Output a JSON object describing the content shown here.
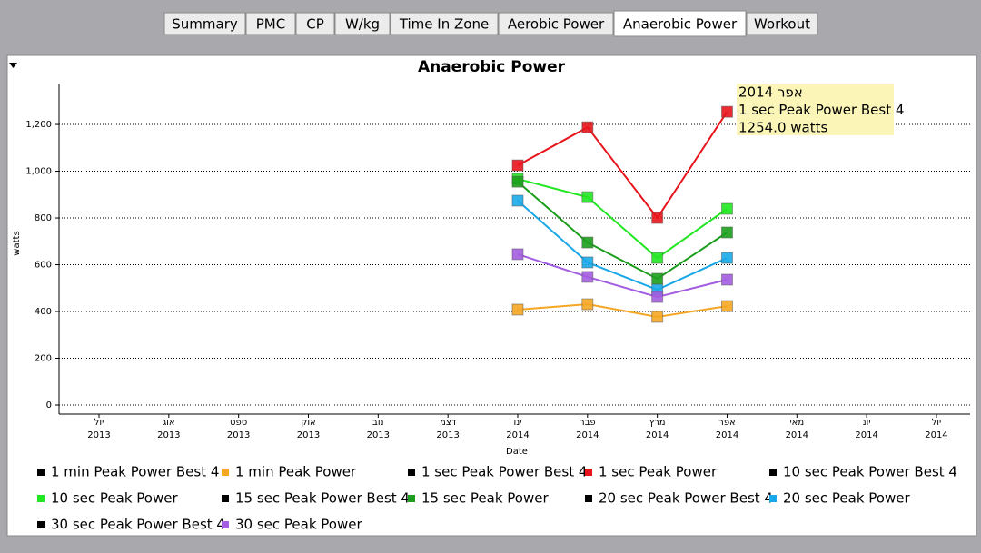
{
  "tabs": [
    "Summary",
    "PMC",
    "CP",
    "W/kg",
    "Time In Zone",
    "Aerobic Power",
    "Anaerobic Power",
    "Workout"
  ],
  "active_tab": 6,
  "chart_data": {
    "type": "line",
    "title": "Anaerobic Power",
    "y_label": "watts",
    "x_label": "Date",
    "categories": [
      "יול 2013",
      "אוג 2013",
      "ספט 2013",
      "אוק 2013",
      "נוב 2013",
      "דצמ 2013",
      "ינו 2014",
      "פבר 2014",
      "מרץ 2014",
      "אפר 2014",
      "מאי 2014",
      "יונ 2014",
      "יול 2014"
    ],
    "ylim": [
      0,
      1375
    ],
    "yticks": [
      0,
      200,
      400,
      600,
      800,
      {
        "value": 1000,
        "label": "1,000"
      },
      {
        "value": 1200,
        "label": "1,200"
      }
    ],
    "grid": true,
    "series": [
      {
        "name": "1 min Peak Power Best 4",
        "color": "#000000",
        "values": [
          null,
          null,
          null,
          null,
          null,
          null,
          null,
          null,
          null,
          null,
          null,
          null,
          null
        ]
      },
      {
        "name": "1 min Peak Power",
        "color": "#f5a623",
        "values": [
          null,
          null,
          null,
          null,
          null,
          null,
          408,
          431,
          377,
          423,
          null,
          null,
          null
        ]
      },
      {
        "name": "1 sec Peak Power Best 4",
        "color": "#000000",
        "values": [
          null,
          null,
          null,
          null,
          null,
          null,
          null,
          null,
          null,
          null,
          null,
          null,
          null
        ]
      },
      {
        "name": "1 sec Peak Power",
        "color": "#e8141c",
        "values": [
          null,
          null,
          null,
          null,
          null,
          null,
          1025,
          1188,
          800,
          1254,
          null,
          null,
          null
        ]
      },
      {
        "name": "10 sec Peak Power Best 4",
        "color": "#000000",
        "values": [
          null,
          null,
          null,
          null,
          null,
          null,
          null,
          null,
          null,
          null,
          null,
          null,
          null
        ]
      },
      {
        "name": "10 sec Peak Power",
        "color": "#22e622",
        "values": [
          null,
          null,
          null,
          null,
          null,
          null,
          967,
          889,
          629,
          839,
          null,
          null,
          null
        ]
      },
      {
        "name": "15 sec Peak Power Best 4",
        "color": "#000000",
        "values": [
          null,
          null,
          null,
          null,
          null,
          null,
          null,
          null,
          null,
          null,
          null,
          null,
          null
        ]
      },
      {
        "name": "15 sec Peak Power",
        "color": "#1c9e1c",
        "values": [
          null,
          null,
          null,
          null,
          null,
          null,
          955,
          695,
          540,
          738,
          null,
          null,
          null
        ]
      },
      {
        "name": "20 sec Peak Power Best 4",
        "color": "#000000",
        "values": [
          null,
          null,
          null,
          null,
          null,
          null,
          null,
          null,
          null,
          null,
          null,
          null,
          null
        ]
      },
      {
        "name": "20 sec Peak Power",
        "color": "#1aa8e8",
        "values": [
          null,
          null,
          null,
          null,
          null,
          null,
          874,
          610,
          493,
          629,
          null,
          null,
          null
        ]
      },
      {
        "name": "30 sec Peak Power Best 4",
        "color": "#000000",
        "values": [
          null,
          null,
          null,
          null,
          null,
          null,
          null,
          null,
          null,
          null,
          null,
          null,
          null
        ]
      },
      {
        "name": "30 sec Peak Power",
        "color": "#a35de0",
        "values": [
          null,
          null,
          null,
          null,
          null,
          null,
          645,
          548,
          462,
          536,
          null,
          null,
          null
        ]
      }
    ],
    "tooltip": [
      "אפר 2014",
      "1 sec Peak Power Best 4",
      "1254.0 watts"
    ]
  }
}
